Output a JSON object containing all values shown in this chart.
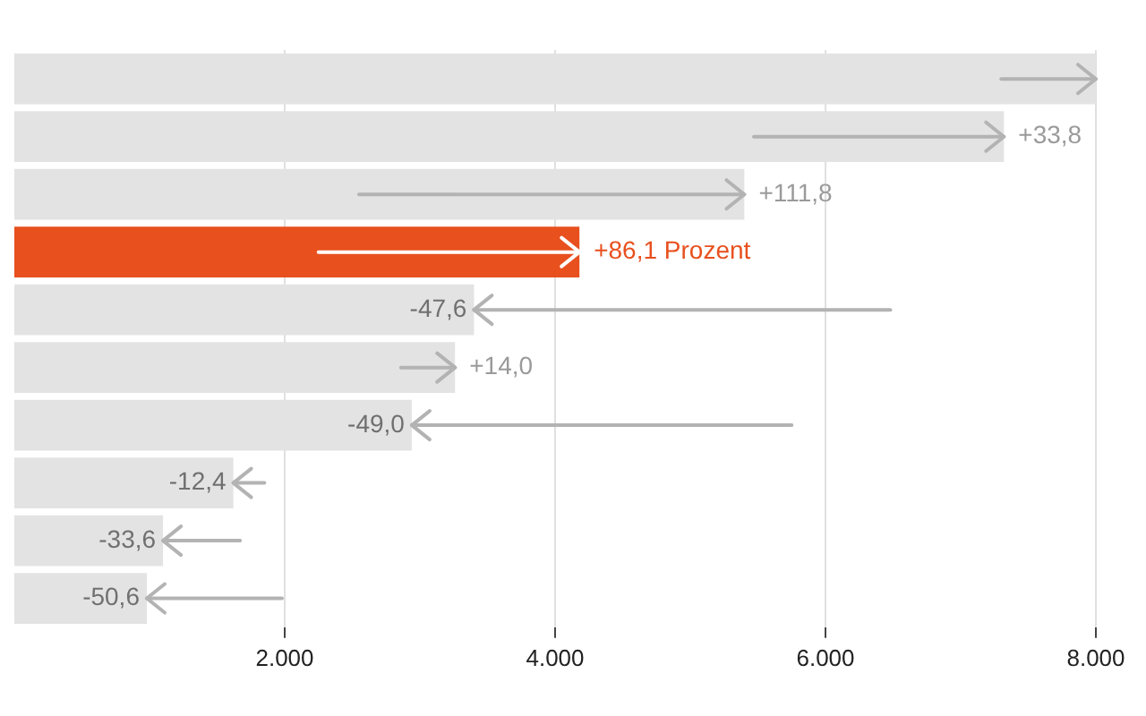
{
  "chart_data": {
    "type": "bar",
    "orientation": "horizontal",
    "categories": [
      null,
      null,
      null,
      null,
      null,
      null,
      null,
      null,
      null,
      null
    ],
    "values": [
      8000,
      7320,
      5400,
      4180,
      3400,
      3260,
      2940,
      1620,
      1100,
      980
    ],
    "colors": [
      "#e3e3e3",
      "#e3e3e3",
      "#e3e3e3",
      "#e8501e",
      "#e3e3e3",
      "#e3e3e3",
      "#e3e3e3",
      "#e3e3e3",
      "#e3e3e3",
      "#e3e3e3"
    ],
    "errors": [
      [
        7300,
        8000
      ],
      [
        5470,
        7320
      ],
      [
        2550,
        5400
      ],
      [
        2250,
        4180
      ],
      [
        3400,
        6480
      ],
      [
        2860,
        3260
      ],
      [
        2940,
        5750
      ],
      [
        1620,
        1850
      ],
      [
        1100,
        1670
      ],
      [
        980,
        1980
      ]
    ],
    "annotations": [
      {
        "text": "+33,8",
        "x": 7320
      },
      {
        "text": "+111,8",
        "x": 5400
      },
      {
        "text": "+86,1 Prozent",
        "x": 4180
      },
      {
        "text": "-47,6",
        "x": 3400
      },
      {
        "text": "+14,0",
        "x": 3260
      },
      {
        "text": "-49,0",
        "x": 2940
      },
      {
        "text": "-12,4",
        "x": 1620
      },
      {
        "text": "-33,6",
        "x": 1100
      },
      {
        "text": "-50,6",
        "x": 980
      }
    ],
    "xlim": [
      0,
      8000
    ],
    "xticks": [
      {
        "value": 2000,
        "label": "2.000"
      },
      {
        "value": 4000,
        "label": "4.000"
      },
      {
        "value": 6000,
        "label": "6.000"
      },
      {
        "value": 8000,
        "label": "8.000"
      }
    ],
    "grid": "x",
    "legend": false,
    "tick_labels": "x"
  }
}
